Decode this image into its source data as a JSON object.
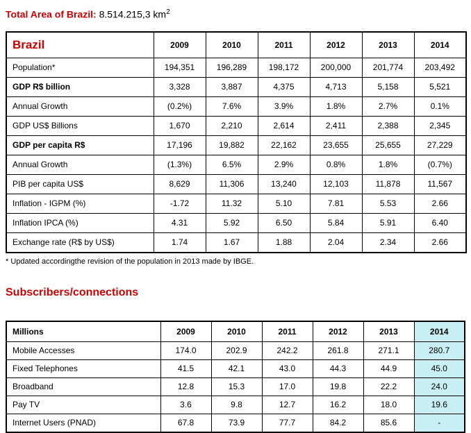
{
  "title": {
    "label": "Total Area of Brazil:",
    "value": " 8.514.215,3 km",
    "sup": "2"
  },
  "brazil_table": {
    "header": {
      "label": "Brazil",
      "years": [
        "2009",
        "2010",
        "2011",
        "2012",
        "2013",
        "2014"
      ]
    },
    "rows": [
      {
        "label": "Population*",
        "bold": false,
        "values": [
          "194,351",
          "196,289",
          "198,172",
          "200,000",
          "201,774",
          "203,492"
        ]
      },
      {
        "label": "GDP R$ billion",
        "bold": true,
        "values": [
          "3,328",
          "3,887",
          "4,375",
          "4,713",
          "5,158",
          "5,521"
        ]
      },
      {
        "label": "Annual Growth",
        "bold": false,
        "values": [
          "(0.2%)",
          "7.6%",
          "3.9%",
          "1.8%",
          "2.7%",
          "0.1%"
        ]
      },
      {
        "label": "GDP US$ Billions",
        "bold": false,
        "values": [
          "1,670",
          "2,210",
          "2,614",
          "2,411",
          "2,388",
          "2,345"
        ]
      },
      {
        "label": "GDP per capita R$",
        "bold": true,
        "values": [
          "17,196",
          "19,882",
          "22,162",
          "23,655",
          "25,655",
          "27,229"
        ]
      },
      {
        "label": "Annual Growth",
        "bold": false,
        "values": [
          "(1.3%)",
          "6.5%",
          "2.9%",
          "0.8%",
          "1.8%",
          "(0.7%)"
        ]
      },
      {
        "label": "PIB per capita US$",
        "bold": false,
        "values": [
          "8,629",
          "11,306",
          "13,240",
          "12,103",
          "11,878",
          "11,567"
        ]
      },
      {
        "label": "Inflation - IGPM (%)",
        "bold": false,
        "values": [
          "-1.72",
          "11.32",
          "5.10",
          "7.81",
          "5.53",
          "2.66"
        ]
      },
      {
        "label": "Inflation IPCA (%)",
        "bold": false,
        "values": [
          "4.31",
          "5.92",
          "6.50",
          "5.84",
          "5.91",
          "6.40"
        ]
      },
      {
        "label": "Exchange rate (R$ by US$)",
        "bold": false,
        "values": [
          "1.74",
          "1.67",
          "1.88",
          "2.04",
          "2.34",
          "2.66"
        ]
      }
    ],
    "footnote": "* Updated accordingthe revision of the population in 2013 made by IBGE."
  },
  "subscribers": {
    "heading": "Subscribers/connections",
    "table": {
      "header": {
        "label": "Millions",
        "years": [
          "2009",
          "2010",
          "2011",
          "2012",
          "2013",
          "2014"
        ]
      },
      "highlight_last_column": true,
      "rows": [
        {
          "label": "Mobile Accesses",
          "bold": false,
          "values": [
            "174.0",
            "202.9",
            "242.2",
            "261.8",
            "271.1",
            "280.7"
          ]
        },
        {
          "label": "Fixed Telephones",
          "bold": false,
          "values": [
            "41.5",
            "42.1",
            "43.0",
            "44.3",
            "44.9",
            "45.0"
          ]
        },
        {
          "label": "Broadband",
          "bold": false,
          "values": [
            "12.8",
            "15.3",
            "17.0",
            "19.8",
            "22.2",
            "24.0"
          ]
        },
        {
          "label": "Pay TV",
          "bold": false,
          "values": [
            "3.6",
            "9.8",
            "12.7",
            "16.2",
            "18.0",
            "19.6"
          ]
        },
        {
          "label": "Internet Users (PNAD)",
          "bold": false,
          "values": [
            "67.8",
            "73.9",
            "77.7",
            "84.2",
            "85.6",
            "-"
          ]
        }
      ]
    }
  },
  "colors": {
    "accent_red": "#cc0000",
    "highlight_cyan": "#c8eff3",
    "border": "#000000"
  }
}
